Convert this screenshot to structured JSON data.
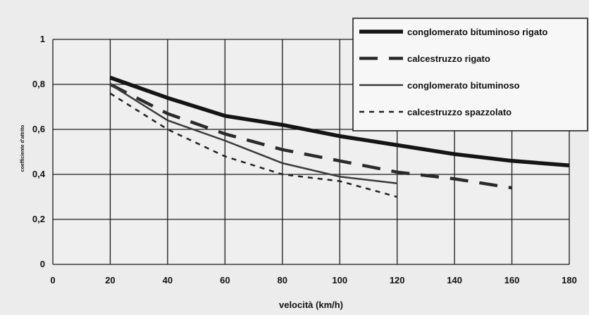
{
  "chart_data": {
    "type": "line",
    "xlabel": "velocità (km/h)",
    "ylabel": "coefficiente d'attrito",
    "xlim": [
      0,
      180
    ],
    "ylim": [
      0,
      1
    ],
    "xticks": [
      "0",
      "20",
      "40",
      "60",
      "80",
      "100",
      "120",
      "140",
      "160",
      "180"
    ],
    "yticks": [
      "0",
      "0,2",
      "0,4",
      "0,6",
      "0,8",
      "1"
    ],
    "grid": true,
    "legend_position": "top-right",
    "series": [
      {
        "name": "conglomerato bituminoso rigato",
        "style": "thick-solid",
        "color": "#141414",
        "x": [
          20,
          40,
          60,
          80,
          100,
          120,
          140,
          160,
          180
        ],
        "y": [
          0.83,
          0.74,
          0.66,
          0.62,
          0.57,
          0.53,
          0.49,
          0.46,
          0.44
        ]
      },
      {
        "name": "calcestruzzo rigato",
        "style": "long-dash",
        "color": "#2a2a2a",
        "x": [
          20,
          40,
          60,
          80,
          100,
          120,
          140,
          160
        ],
        "y": [
          0.8,
          0.67,
          0.58,
          0.51,
          0.46,
          0.41,
          0.38,
          0.34
        ]
      },
      {
        "name": "conglomerato bituminoso",
        "style": "thin-solid",
        "color": "#3a3a3a",
        "x": [
          20,
          40,
          60,
          80,
          100,
          120
        ],
        "y": [
          0.8,
          0.64,
          0.55,
          0.45,
          0.39,
          0.36
        ]
      },
      {
        "name": "calcestruzzo spazzolato",
        "style": "short-dash",
        "color": "#222222",
        "x": [
          20,
          40,
          60,
          80,
          100,
          120
        ],
        "y": [
          0.76,
          0.6,
          0.48,
          0.4,
          0.37,
          0.3
        ]
      }
    ]
  }
}
